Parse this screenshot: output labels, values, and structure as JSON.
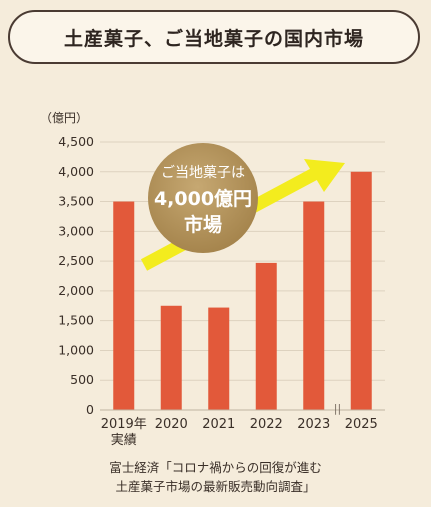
{
  "title": "土産菓子、ご当地菓子の国内市場",
  "chart_data": {
    "type": "bar",
    "unit_label": "（億円）",
    "categories": [
      "2019年\n実績",
      "2020",
      "2021",
      "2022",
      "2023",
      "2025"
    ],
    "values": [
      3500,
      1750,
      1720,
      2470,
      3500,
      4000
    ],
    "ylim": [
      0,
      4500
    ],
    "yticks": [
      0,
      500,
      1000,
      1500,
      2000,
      2500,
      3000,
      3500,
      4000,
      4500
    ],
    "ytick_labels": [
      "0",
      "500",
      "1,000",
      "1,500",
      "2,000",
      "2,500",
      "3,000",
      "3,500",
      "4,000",
      "4,500"
    ],
    "axis_break": "||",
    "bar_color": "#e2593a",
    "grid": true,
    "callout": {
      "lines": [
        "ご当地菓子は",
        "4,000億円",
        "市場"
      ],
      "circle_color": "#b39358",
      "arrow_color": "#f3ec1e"
    }
  },
  "source": {
    "line1": "富士経済「コロナ禍からの回復が進む",
    "line2": "土産菓子市場の最新販売動向調査」"
  }
}
